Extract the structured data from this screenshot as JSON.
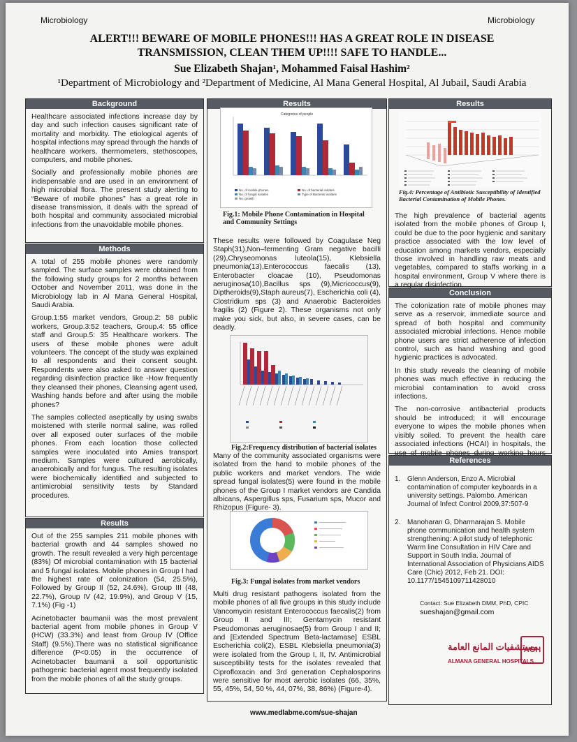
{
  "header": {
    "tag_left": "Microbiology",
    "tag_right": "Microbiology",
    "title_line1": "ALERT!!! BEWARE OF MOBILE PHONES!!! HAS A GREAT ROLE IN DISEASE",
    "title_line2": "TRANSMISSION, CLEAN THEM UP!!!! SAFE TO HANDLE...",
    "authors": "Sue Elizabeth Shajan¹, Mohammed Faisal Hashim²",
    "affiliation": "¹Department of Microbiology and ²Department of Medicine, Al Mana General Hospital, Al Jubail, Saudi Arabia"
  },
  "background": {
    "heading": "Background",
    "p1": "Healthcare associated infections increase day by day and such infection causes significant rate of mortality and morbidity. The etiological agents of hospital infections may spread through the hands of healthcare workers, thermometers, stethoscopes, computers, and mobile phones.",
    "p2": "Socially and professionally mobile phones are indispensable and are used in an environment of high microbial flora. The present study alerting to “Beware of mobile phones” has a great role in disease transmission, it deals with the spread of both hospital and community associated microbial infections from the unavoidable mobile phones."
  },
  "methods": {
    "heading": "Methods",
    "p1": "A total of 255 mobile phones were randomly sampled. The surface samples were obtained from the following study groups for 2 months between October and November 2011, was done in the Microbiology lab in Al Mana General Hospital, Saudi Arabia.",
    "p2": "Group.1:55 market vendors, Group.2: 58 public workers, Group.3:52 teachers, Group.4: 55 office staff and Group.5: 35 Healthcare workers. The users of these mobile phones were adult volunteers. The concept of the study was explained to all respondents and their consent sought. Respondents were also asked to answer question regarding disinfection practice like -How frequently they cleansed their phones, Cleansing agent used, Washing hands before and after using the mobile phones?",
    "p3": "The samples collected aseptically by using swabs moistened with sterile normal saline, was rolled over all exposed outer surfaces of the mobile phones. From each location those collected samples were inoculated into Amies transport medium. Samples were cultured aerobically, anaerobically and for fungus. The resulting isolates were biochemically identified and subjected to antimicrobial sensitivity tests by Standard procedures."
  },
  "results_left": {
    "heading": "Results",
    "p1": "Out of the 255 samples 211 mobile phones with bacterial growth and 44 samples showed no growth. The result revealed a very high percentage (83%) Of microbial contamination with 15 bacterial and 5 fungal isolates. Mobile phones in Group I had the highest rate of colonization (54, 25.5%), Followed by Group II (52, 24.6%), Group III (48, 22.7%), Group IV (42, 19.9%), and Group V (15, 7.1%) (Fig -1)",
    "p2": "Acinetobacter baumanii was the most prevalent bacterial agent from mobile phones in Group V (HCW) (33.3%) and least from Group IV (Office Staff) (9.5%).There was no statistical significance difference (P<0.05) in the occurrence of Acinetobacter baumanii a soil opportunistic pathogenic bacterial agent most frequently isolated from the mobile phones of all the study groups."
  },
  "results_mid": {
    "heading": "Results",
    "fig1_caption": "Fig.1: Mobile Phone Contamination in Hospital and Community Settings",
    "fig1_title": "Categories of people",
    "fig1_legend": [
      "No. of mobile phones",
      "No. of fungal isolates",
      "No. growth",
      "No. of bacterial isolates",
      "Type of Bacterial isolates"
    ],
    "p1": "These results were followed by Coagulase Neg Staph(31),Non–fermenting Gram negative bacilli (29),Chryseomonas luteola(15), Klebsiella pneumonia(13),Enterococcus faecalis (13), Enterobacter cloacae (10), Pseudomonas aeruginosa(10),Bacillus sps (9),Micricoccus(9), Diptheroids(9),Staph aureus(7), Escherichia coli (4), Clostridium sps (3) and Anaerobic Bacteroides fragilis (2) (Figure 2). These organisms not only make you sick, but also, in severe cases, can be deadly.",
    "fig2_caption": "Fig.2:Frequency distribution of bacterial isolates",
    "p2": "Many of the community associated organisms were isolated from the hand to mobile phones of the public workers and market vendors. The wide spread fungal isolates(5) were found in the mobile phones of the Group I market vendors are Candida albicans, Aspergillus sps, Fusarium sps, Mucor and Rhizopus (Figure- 3).",
    "fig3_caption": "Fig.3: Fungal isolates from market vendors",
    "p3": "Multi drug resistant pathogens isolated from the mobile phones of all five groups in this study include Vancomycin resistant Enterococcus faecalis(2) from Group II and III; Gentamycin resistant Pseudomonas aeruginosae(5) from Group I and II; and [Extended Spectrum Beta-lactamase] ESBL Escherichia coli(2), ESBL Klebsiella pneumonia(3) were isolated from the Group I, II, IV. Antimicrobial susceptibility tests for the isolates revealed that Ciprofloxacin and 3rd generation Cephalosporins were sensitive for most aerobic isolates (66, 35%, 55, 45%, 54, 50 %, 44, 07%, 38, 86%) (Figure-4)."
  },
  "results_right": {
    "heading": "Results",
    "fig4_caption": "Fig.4: Percentage of Antibiotic Susceptibility of Identified Bacterial Contamination of Mobile Phones.",
    "p1": "The high prevalence of bacterial agents isolated from the mobile phones of Group I, could be due to the poor hygienic and sanitary practice associated with the low level of education among markets vendors, especially those involved in handling raw meats and vegetables, compared to staffs working in a hospital environment, Group V where there is a regular disinfection."
  },
  "conclusion": {
    "heading": "Conclusion",
    "p1": "The colonization rate of mobile phones may serve as a reservoir, immediate source and spread of both hospital and community associated microbial infections. Hence mobile phone users are strict adherence of infection control, such as hand washing and good hygienic practices is advocated.",
    "p2": "In this study reveals the cleaning of mobile phones was much effective in reducing the microbial contamination to avoid cross infections.",
    "p3": "The non-corrosive antibacterial products should be introduced; it will encourage everyone to wipes the mobile phones when visibly soiled. To prevent the health care associated infections (HCAI) in hospitals, the use of mobile phones during working hours should be strictly prohibited."
  },
  "references": {
    "heading": "References",
    "r1_num": "1.",
    "r1": "Glenn Anderson, Enzo A. Microbial contamination of computer keyboards in a university settings. Palombo. American Journal of Infect Control 2009,37:507-9",
    "r2_num": "2.",
    "r2": "Manoharan G, Dharmarajan S. Mobile phone communication and health system strengthening: A pilot study of telephonic Warm line Consultation in HIV Care and Support in South India. Journal of International Association of Physicians AIDS Care (Chic) 2012, Feb 21. DOI: 10.1177/1545109711428010"
  },
  "contact": {
    "line": "Contact: Sue Elizabeth DMM, PhD, CPIC",
    "email": "sueshajan@gmail.com"
  },
  "logo": {
    "arabic": "مستشفيات المانع العامة",
    "english": "ALMANA GENERAL HOSPITALS",
    "mark": "AGH"
  },
  "footer": {
    "website": "www.medlabme.com/sue-shajan"
  },
  "colors": {
    "header_bar": "#555a63",
    "accent_red": "#a8203a",
    "bar_blue": "#2b4b9a",
    "bar_red": "#b0283a"
  }
}
